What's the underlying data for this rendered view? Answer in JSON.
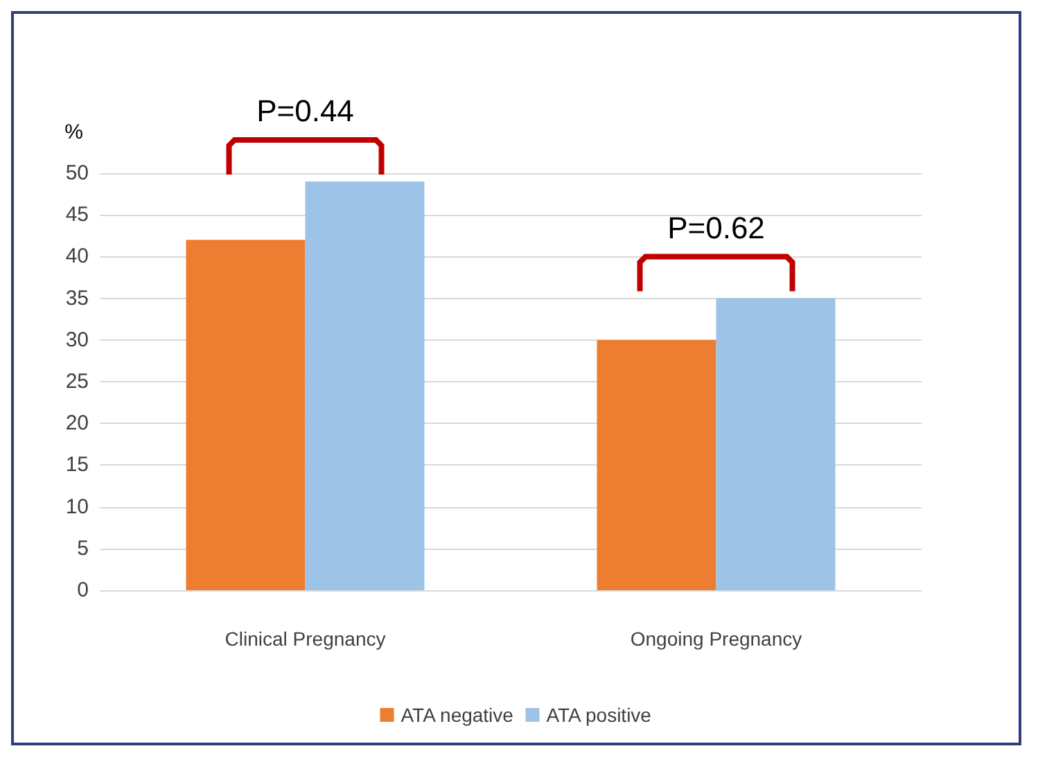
{
  "chart_data": {
    "type": "bar",
    "ylabel": "%",
    "categories": [
      "Clinical Pregnancy",
      "Ongoing Pregnancy"
    ],
    "series": [
      {
        "name": "ATA negative",
        "color": "#ed7d31",
        "values": [
          42,
          30
        ]
      },
      {
        "name": "ATA positive",
        "color": "#9dc3e6",
        "values": [
          49,
          35
        ]
      }
    ],
    "ylim": [
      0,
      50
    ],
    "yticks": [
      0,
      5,
      10,
      15,
      20,
      25,
      30,
      35,
      40,
      45,
      50
    ],
    "grid": "y",
    "legend": "bottom",
    "annotations": [
      "P=0.44",
      "P=0.62"
    ]
  }
}
